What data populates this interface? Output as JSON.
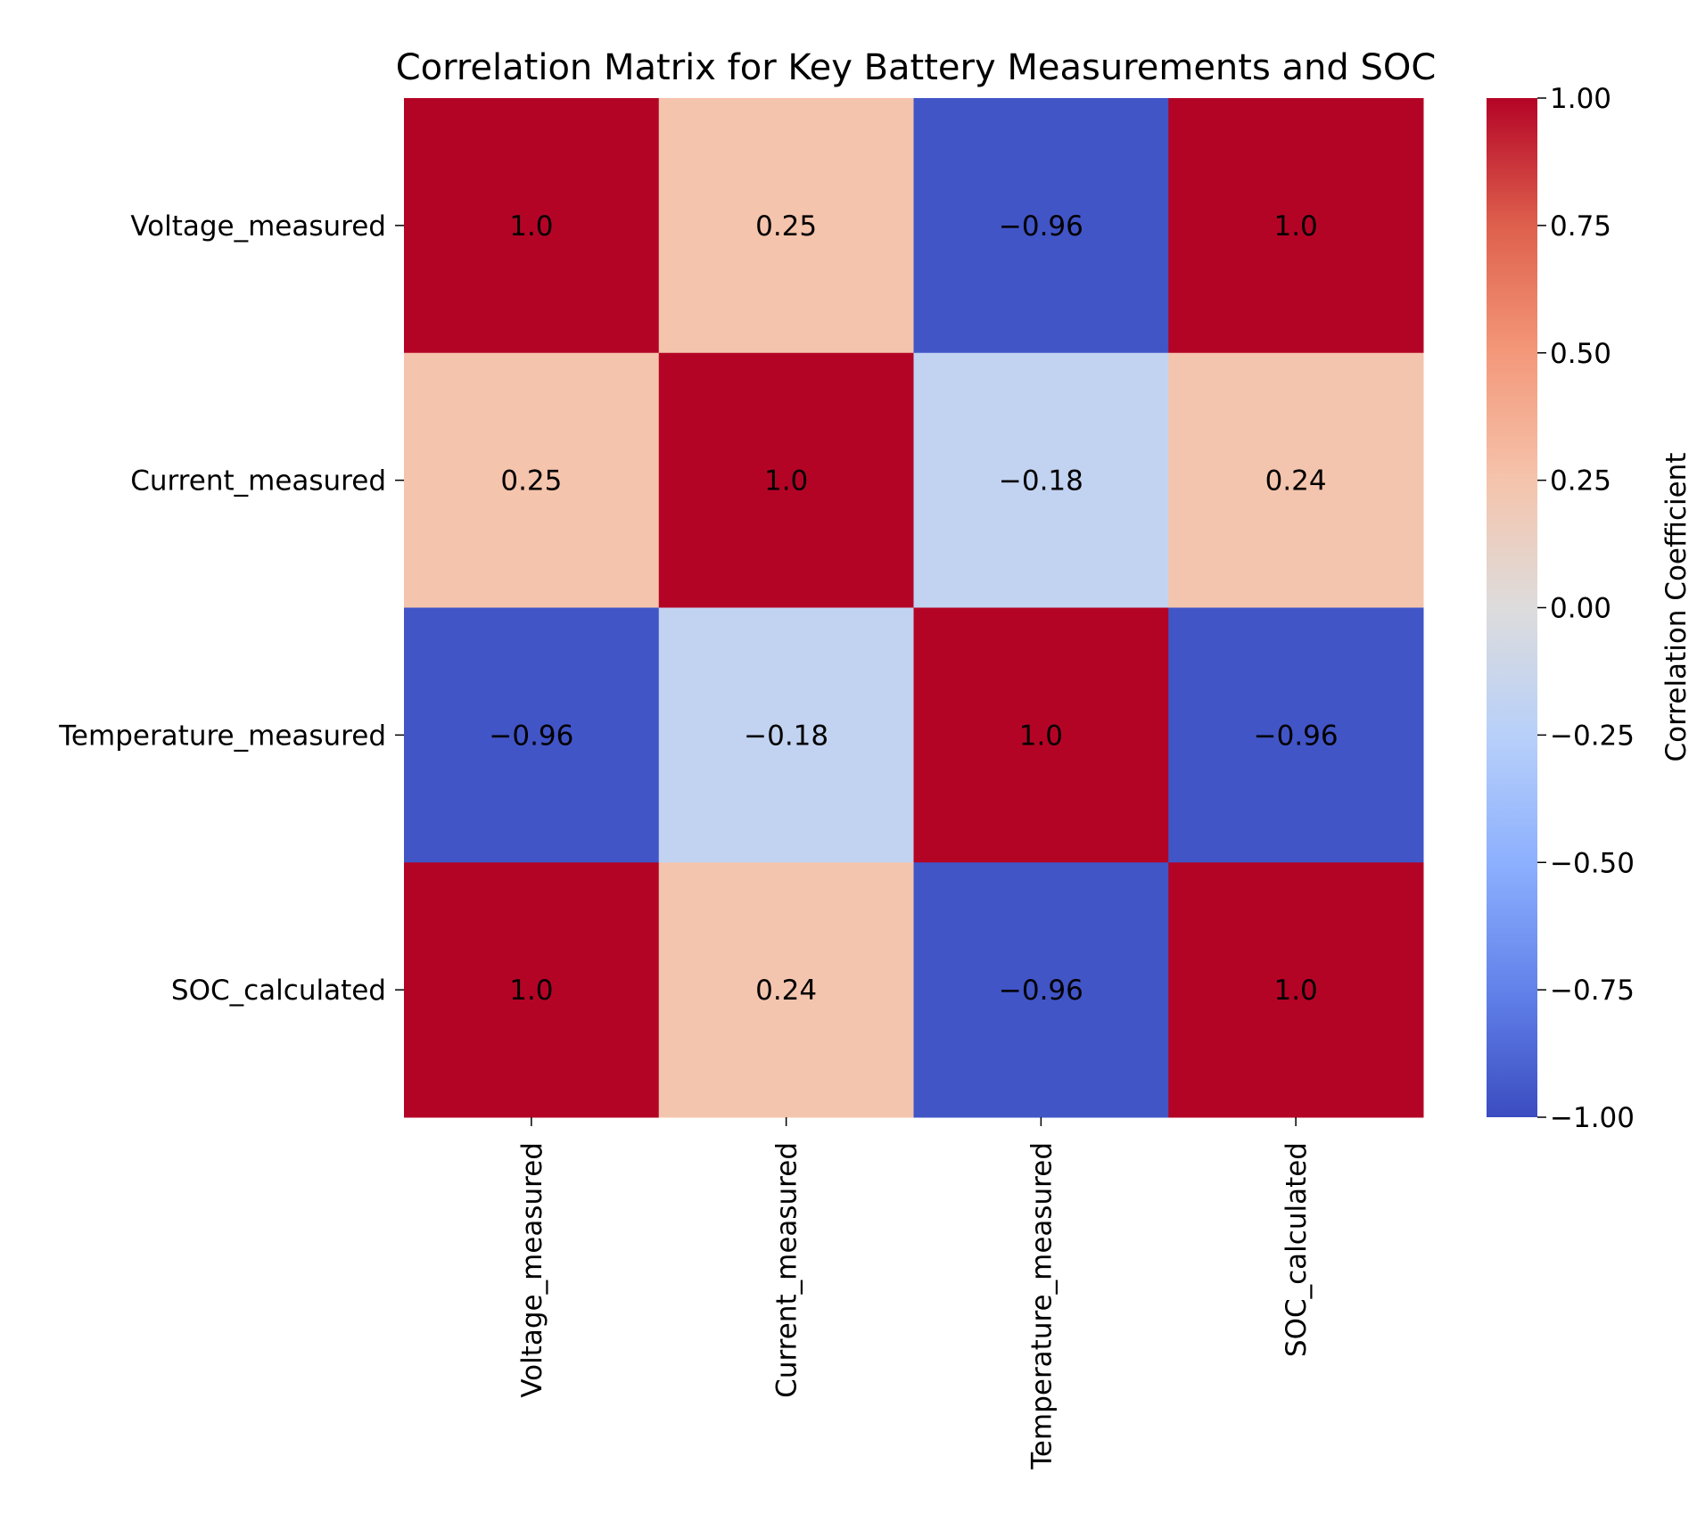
{
  "chart_data": {
    "type": "heatmap",
    "title": "Correlation Matrix for Key Battery Measurements and SOC",
    "row_labels": [
      "Voltage_measured",
      "Current_measured",
      "Temperature_measured",
      "SOC_calculated"
    ],
    "col_labels": [
      "Voltage_measured",
      "Current_measured",
      "Temperature_measured",
      "SOC_calculated"
    ],
    "values": [
      [
        1.0,
        0.25,
        -0.96,
        1.0
      ],
      [
        0.25,
        1.0,
        -0.18,
        0.24
      ],
      [
        -0.96,
        -0.18,
        1.0,
        -0.96
      ],
      [
        1.0,
        0.24,
        -0.96,
        1.0
      ]
    ],
    "annotations": [
      [
        "1.0",
        "0.25",
        "−0.96",
        "1.0"
      ],
      [
        "0.25",
        "1.0",
        "−0.18",
        "0.24"
      ],
      [
        "−0.96",
        "−0.18",
        "1.0",
        "−0.96"
      ],
      [
        "1.0",
        "0.24",
        "−0.96",
        "1.0"
      ]
    ],
    "colormap": "coolwarm",
    "vmin": -1.0,
    "vmax": 1.0,
    "colorbar": {
      "label": "Correlation Coefficient",
      "ticks": [
        1.0,
        0.75,
        0.5,
        0.25,
        0.0,
        -0.25,
        -0.5,
        -0.75,
        -1.0
      ],
      "tick_labels": [
        "1.00",
        "0.75",
        "0.50",
        "0.25",
        "0.00",
        "−0.25",
        "−0.50",
        "−0.75",
        "−1.00"
      ]
    }
  }
}
